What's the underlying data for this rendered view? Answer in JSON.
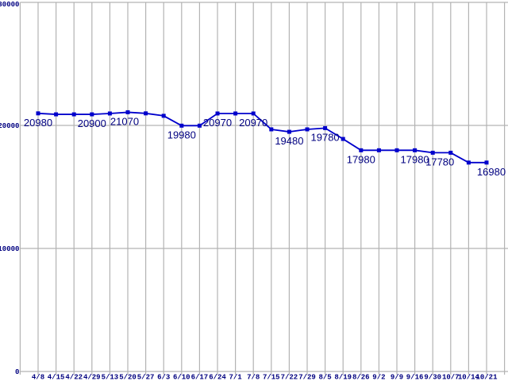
{
  "chart_data": {
    "type": "line",
    "title": "",
    "xlabel": "",
    "ylabel": "",
    "ylim": [
      0,
      30000
    ],
    "grid": true,
    "legend": "none",
    "x_labels": [
      "4/8",
      "4/15",
      "4/22",
      "4/29",
      "5/13",
      "5/20",
      "5/27",
      "6/3",
      "6/10",
      "6/17",
      "6/24",
      "7/1",
      "7/8",
      "7/15",
      "7/22",
      "7/29",
      "8/5",
      "8/19",
      "8/26",
      "9/2",
      "9/9",
      "9/16",
      "9/30",
      "10/7",
      "10/14",
      "10/21"
    ],
    "series": [
      {
        "name": "price",
        "values": [
          20980,
          20900,
          20900,
          20900,
          20970,
          21070,
          20980,
          20780,
          19980,
          19980,
          20970,
          20970,
          20970,
          19680,
          19480,
          19680,
          19780,
          18900,
          17980,
          17980,
          17980,
          17980,
          17780,
          17780,
          16980,
          16980
        ]
      }
    ],
    "point_labels": [
      {
        "index": 0,
        "text": "20980"
      },
      {
        "index": 3,
        "text": "20900"
      },
      {
        "index": 5,
        "text": "21070",
        "dx": -4
      },
      {
        "index": 8,
        "text": "19980"
      },
      {
        "index": 10,
        "text": "20970"
      },
      {
        "index": 12,
        "text": "20970"
      },
      {
        "index": 14,
        "text": "19480"
      },
      {
        "index": 16,
        "text": "19780"
      },
      {
        "index": 18,
        "text": "17980"
      },
      {
        "index": 21,
        "text": "17980"
      },
      {
        "index": 22,
        "text": "17780",
        "dx": 9
      },
      {
        "index": 25,
        "text": "16980",
        "dx": 6
      }
    ],
    "y_ticks": [
      {
        "value": 0,
        "label": "0"
      },
      {
        "value": 10000,
        "label": "10000"
      },
      {
        "value": 20000,
        "label": "20000"
      },
      {
        "value": 30000,
        "label": "30000"
      }
    ],
    "colors": {
      "line": "#0000cc",
      "marker": "#0000cc",
      "grid": "#b3b3b3",
      "text": "#000080",
      "background": "#ffffff"
    }
  }
}
